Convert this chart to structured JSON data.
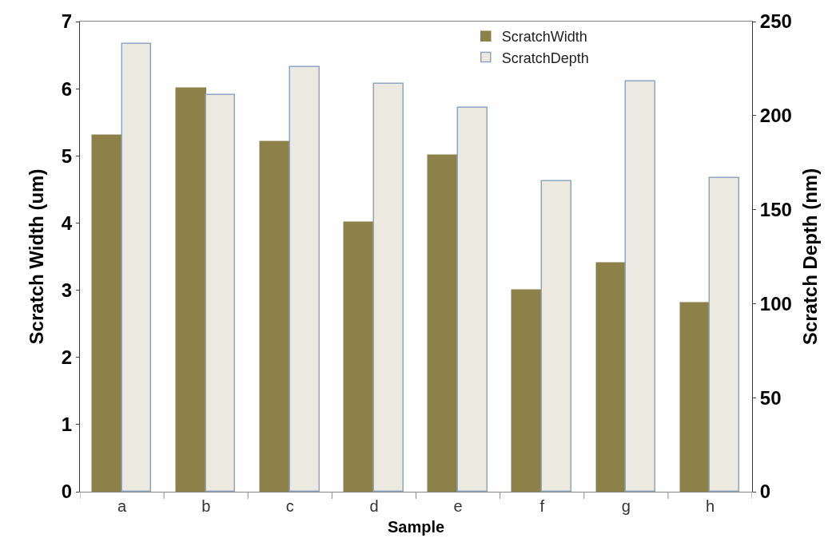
{
  "chart_data": {
    "type": "bar",
    "xlabel": "Sample",
    "ylabel": "Scratch Width (um)",
    "y2label": "Scratch Depth (nm)",
    "categories": [
      "a",
      "b",
      "c",
      "d",
      "e",
      "f",
      "g",
      "h"
    ],
    "series": [
      {
        "name": "ScratchWidth",
        "color": "#8b8149",
        "values": [
          5.3,
          6.0,
          5.2,
          4.0,
          5.0,
          3.0,
          3.4,
          2.8
        ]
      },
      {
        "name": "ScratchDepth",
        "color": "#ece9e0",
        "axis": "y2",
        "values": [
          238,
          211,
          226,
          217,
          204,
          165,
          218,
          167
        ]
      }
    ],
    "ylim": [
      0,
      7
    ],
    "yticks": [
      0,
      1,
      2,
      3,
      4,
      5,
      6,
      7
    ],
    "y2lim": [
      0,
      250
    ],
    "y2ticks": [
      0,
      50,
      100,
      150,
      200,
      250
    ],
    "legend": "top right"
  }
}
